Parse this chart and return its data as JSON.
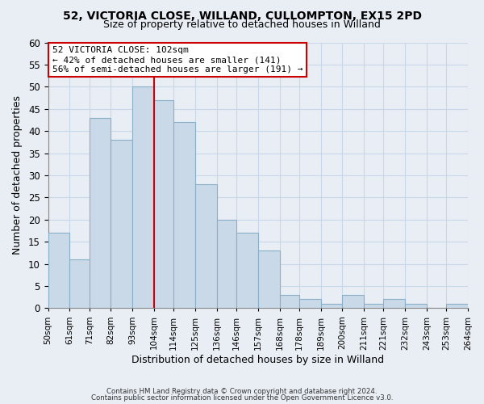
{
  "title": "52, VICTORIA CLOSE, WILLAND, CULLOMPTON, EX15 2PD",
  "subtitle": "Size of property relative to detached houses in Willand",
  "xlabel": "Distribution of detached houses by size in Willand",
  "ylabel": "Number of detached properties",
  "bin_labels": [
    "50sqm",
    "61sqm",
    "71sqm",
    "82sqm",
    "93sqm",
    "104sqm",
    "114sqm",
    "125sqm",
    "136sqm",
    "146sqm",
    "157sqm",
    "168sqm",
    "178sqm",
    "189sqm",
    "200sqm",
    "211sqm",
    "221sqm",
    "232sqm",
    "243sqm",
    "253sqm",
    "264sqm"
  ],
  "bar_values": [
    17,
    11,
    43,
    38,
    50,
    47,
    42,
    28,
    20,
    17,
    13,
    3,
    2,
    1,
    3,
    1,
    2,
    1,
    0,
    1
  ],
  "bar_left_edges": [
    50,
    61,
    71,
    82,
    93,
    104,
    114,
    125,
    136,
    146,
    157,
    168,
    178,
    189,
    200,
    211,
    221,
    232,
    243,
    253
  ],
  "bar_widths": [
    11,
    10,
    11,
    11,
    11,
    10,
    11,
    11,
    10,
    11,
    11,
    10,
    11,
    11,
    11,
    10,
    11,
    11,
    10,
    11
  ],
  "bar_color": "#c9d9e8",
  "bar_edge_color": "#8aafc8",
  "vline_x": 104,
  "vline_color": "#cc0000",
  "ylim": [
    0,
    60
  ],
  "yticks": [
    0,
    5,
    10,
    15,
    20,
    25,
    30,
    35,
    40,
    45,
    50,
    55,
    60
  ],
  "grid_color": "#c8d8e8",
  "background_color": "#e8eef4",
  "plot_bg_color": "#e8eef4",
  "annotation_title": "52 VICTORIA CLOSE: 102sqm",
  "annotation_line1": "← 42% of detached houses are smaller (141)",
  "annotation_line2": "56% of semi-detached houses are larger (191) →",
  "annotation_box_color": "#ffffff",
  "annotation_border_color": "#cc0000",
  "footer_line1": "Contains HM Land Registry data © Crown copyright and database right 2024.",
  "footer_line2": "Contains public sector information licensed under the Open Government Licence v3.0."
}
